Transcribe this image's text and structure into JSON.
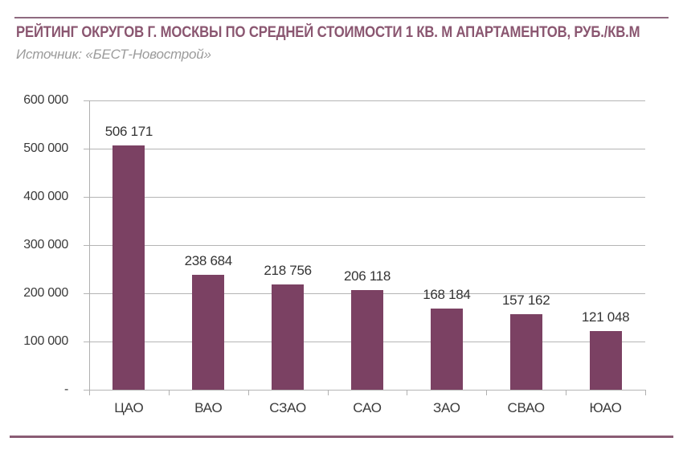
{
  "header": {
    "title": "РЕЙТИНГ ОКРУГОВ Г. МОСКВЫ ПО СРЕДНЕЙ СТОИМОСТИ 1 КВ. М АПАРТАМЕНТОВ, РУБ./КВ.М",
    "source": "Источник: «БЕСТ-Новострой»"
  },
  "colors": {
    "bar": "#7b4163",
    "title": "#8a5670",
    "divider": "#8a5c74",
    "grid": "#b5b5b5",
    "text": "#3b3b3b"
  },
  "chart_data": {
    "type": "bar",
    "title": "РЕЙТИНГ ОКРУГОВ Г. МОСКВЫ ПО СРЕДНЕЙ СТОИМОСТИ 1 КВ. М АПАРТАМЕНТОВ, РУБ./КВ.М",
    "source": "Источник: «БЕСТ-Новострой»",
    "categories": [
      "ЦАО",
      "ВАО",
      "СЗАО",
      "САО",
      "ЗАО",
      "СВАО",
      "ЮАО"
    ],
    "values": [
      506171,
      238684,
      218756,
      206118,
      168184,
      157162,
      121048
    ],
    "value_labels": [
      "506 171",
      "238 684",
      "218 756",
      "206 118",
      "168 184",
      "157 162",
      "121 048"
    ],
    "xlabel": "",
    "ylabel": "",
    "ylim": [
      0,
      600000
    ],
    "grid": true,
    "legend": "none",
    "y_ticks": [
      {
        "value": 0,
        "label": "-"
      },
      {
        "value": 100000,
        "label": "100 000"
      },
      {
        "value": 200000,
        "label": "200 000"
      },
      {
        "value": 300000,
        "label": "300 000"
      },
      {
        "value": 400000,
        "label": "400 000"
      },
      {
        "value": 500000,
        "label": "500 000"
      },
      {
        "value": 600000,
        "label": "600 000"
      }
    ]
  }
}
